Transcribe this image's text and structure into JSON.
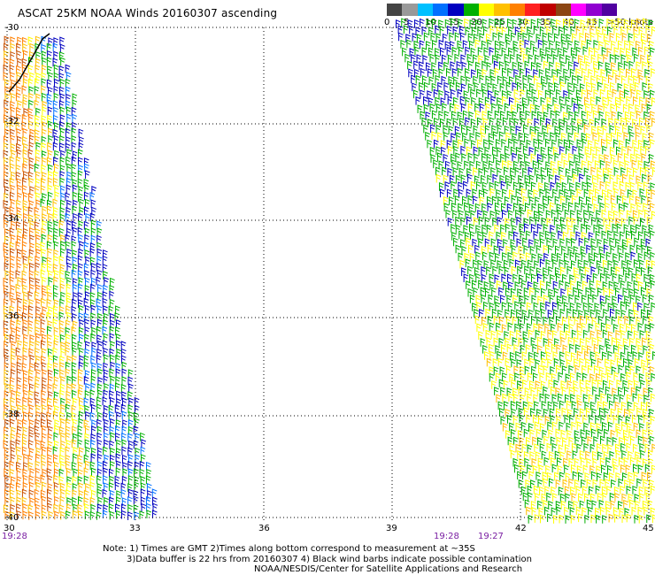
{
  "title": "ASCAT 25KM NOAA Winds 20160307 ascending",
  "legend": {
    "colors": [
      "#444444",
      "#999999",
      "#00c0ff",
      "#0070ff",
      "#0000c0",
      "#00b000",
      "#ffff00",
      "#ffc000",
      "#ff8000",
      "#ff2020",
      "#c00000",
      "#8b4513",
      "#ff00ff",
      "#9000d0",
      "#5000a0"
    ],
    "labels": [
      "0",
      "5",
      "10",
      "15",
      "20",
      "25",
      "30",
      "35",
      "40",
      "45",
      ">50 knots"
    ]
  },
  "axes": {
    "lon_ticks": [
      "30",
      "33",
      "36",
      "39",
      "42",
      "45"
    ],
    "lat_ticks": [
      "-30",
      "-32",
      "-34",
      "-36",
      "-38",
      "-40"
    ]
  },
  "pass_times": [
    "19:28",
    "19:28",
    "19:27"
  ],
  "notes": [
    "Note: 1) Times are GMT 2)Times along bottom correspond to measurement at ~35S",
    "3)Data buffer is 22 hrs from 20160307 4) Black wind barbs indicate possible contamination",
    "NOAA/NESDIS/Center for Satellite Applications and Research"
  ]
}
